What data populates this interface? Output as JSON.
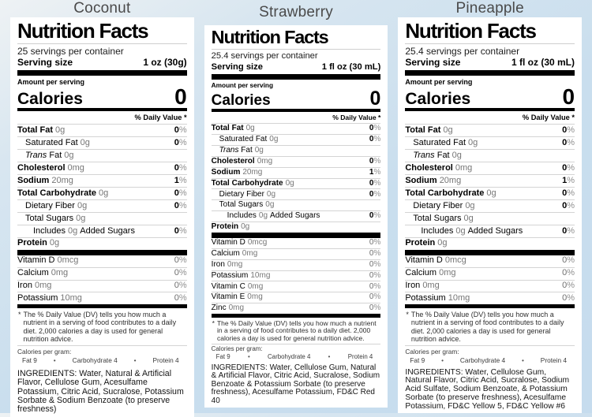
{
  "colors": {
    "page_background": "#c9deee",
    "card_background": "#ffffff",
    "divider_bar": "#000000",
    "muted_text": "#767676",
    "title_text": "#4a4a4a"
  },
  "bullet": "•",
  "cards": [
    {
      "title": "Coconut",
      "heading": "Nutrition Facts",
      "servings_per_container": "25 servings per container",
      "serving_size_label": "Serving size",
      "serving_size_value": "1 oz (30g)",
      "amount_per_serving": "Amount per serving",
      "calories_label": "Calories",
      "calories_value": "0",
      "daily_value_header": "% Daily Value *",
      "nutrient_rows": [
        {
          "name": "Total Fat",
          "qty": "0g",
          "dv": "0%",
          "bold": true,
          "indent": 0
        },
        {
          "name": "Saturated Fat",
          "qty": "0g",
          "dv": "0%",
          "bold": false,
          "indent": 1
        },
        {
          "name_italic": "Trans",
          "name": "Fat",
          "qty": "0g",
          "dv": "",
          "bold": false,
          "indent": 1
        },
        {
          "name": "Cholesterol",
          "qty": "0mg",
          "dv": "0%",
          "bold": true,
          "indent": 0
        },
        {
          "name": "Sodium",
          "qty": "20mg",
          "dv": "1%",
          "bold": true,
          "indent": 0
        },
        {
          "name": "Total Carbohydrate",
          "qty": "0g",
          "dv": "0%",
          "bold": true,
          "indent": 0
        },
        {
          "name": "Dietary Fiber",
          "qty": "0g",
          "dv": "0%",
          "bold": false,
          "indent": 1
        },
        {
          "name": "Total Sugars",
          "qty": "0g",
          "dv": "",
          "bold": false,
          "indent": 1
        },
        {
          "name": "Includes",
          "qty": "0g",
          "name_suffix": "Added Sugars",
          "dv": "0%",
          "bold": false,
          "indent": 2
        },
        {
          "name": "Protein",
          "qty": "0g",
          "dv": "",
          "bold": true,
          "indent": 0
        }
      ],
      "micronutrient_rows": [
        {
          "name": "Vitamin D",
          "qty": "0mcg",
          "dv": "0%"
        },
        {
          "name": "Calcium",
          "qty": "0mg",
          "dv": "0%"
        },
        {
          "name": "Iron",
          "qty": "0mg",
          "dv": "0%"
        },
        {
          "name": "Potassium",
          "qty": "10mg",
          "dv": "0%"
        }
      ],
      "footnote_symbol": "*",
      "footnote": "The % Daily Value (DV) tells you how much a nutrient in a serving of food contributes to a daily diet. 2,000 calories a day is used for general nutrition advice.",
      "calories_per_gram_label": "Calories per gram:",
      "calories_per_gram_items": [
        "Fat 9",
        "Carbohydrate 4",
        "Protein 4"
      ],
      "ingredients": "INGREDIENTS: Water, Natural & Artificial Flavor, Cellulose Gum, Acesulfame Potassium, Citric Acid, Sucralose, Potassium Sorbate & Sodium Benzoate (to preserve freshness)"
    },
    {
      "title": "Strawberry",
      "heading": "Nutrition Facts",
      "servings_per_container": "25.4 servings per container",
      "serving_size_label": "Serving size",
      "serving_size_value": "1 fl oz (30 mL)",
      "amount_per_serving": "Amount per serving",
      "calories_label": "Calories",
      "calories_value": "0",
      "daily_value_header": "% Daily Value *",
      "nutrient_rows": [
        {
          "name": "Total Fat",
          "qty": "0g",
          "dv": "0%",
          "bold": true,
          "indent": 0
        },
        {
          "name": "Saturated Fat",
          "qty": "0g",
          "dv": "0%",
          "bold": false,
          "indent": 1
        },
        {
          "name_italic": "Trans",
          "name": "Fat",
          "qty": "0g",
          "dv": "",
          "bold": false,
          "indent": 1
        },
        {
          "name": "Cholesterol",
          "qty": "0mg",
          "dv": "0%",
          "bold": true,
          "indent": 0
        },
        {
          "name": "Sodium",
          "qty": "20mg",
          "dv": "1%",
          "bold": true,
          "indent": 0
        },
        {
          "name": "Total Carbohydrate",
          "qty": "0g",
          "dv": "0%",
          "bold": true,
          "indent": 0
        },
        {
          "name": "Dietary Fiber",
          "qty": "0g",
          "dv": "0%",
          "bold": false,
          "indent": 1
        },
        {
          "name": "Total Sugars",
          "qty": "0g",
          "dv": "",
          "bold": false,
          "indent": 1
        },
        {
          "name": "Includes",
          "qty": "0g",
          "name_suffix": "Added Sugars",
          "dv": "0%",
          "bold": false,
          "indent": 2
        },
        {
          "name": "Protein",
          "qty": "0g",
          "dv": "",
          "bold": true,
          "indent": 0
        }
      ],
      "micronutrient_rows": [
        {
          "name": "Vitamin D",
          "qty": "0mcg",
          "dv": "0%"
        },
        {
          "name": "Calcium",
          "qty": "0mg",
          "dv": "0%"
        },
        {
          "name": "Iron",
          "qty": "0mg",
          "dv": "0%"
        },
        {
          "name": "Potassium",
          "qty": "10mg",
          "dv": "0%"
        },
        {
          "name": "Vitamin C",
          "qty": "0mg",
          "dv": "0%"
        },
        {
          "name": "Vitamin E",
          "qty": "0mg",
          "dv": "0%"
        },
        {
          "name": "Zinc",
          "qty": "0mg",
          "dv": "0%"
        }
      ],
      "footnote_symbol": "*",
      "footnote": "The % Daily Value (DV) tells you how much a nutrient in a serving of food contributes to a daily diet. 2,000 calories a day is used for general nutrition advice.",
      "calories_per_gram_label": "Calories per gram:",
      "calories_per_gram_items": [
        "Fat 9",
        "Carbohydrate 4",
        "Protein 4"
      ],
      "ingredients": "INGREDIENTS: Water, Cellulose Gum, Natural & Artificial Flavor, Citric Acid, Sucralose, Sodium Benzoate & Potassium Sorbate (to preserve freshness), Acesulfame Potassium, FD&C Red 40"
    },
    {
      "title": "Pineapple",
      "heading": "Nutrition Facts",
      "servings_per_container": "25.4 servings per container",
      "serving_size_label": "Serving size",
      "serving_size_value": "1 fl oz (30 mL)",
      "amount_per_serving": "Amount per serving",
      "calories_label": "Calories",
      "calories_value": "0",
      "daily_value_header": "% Daily Value *",
      "nutrient_rows": [
        {
          "name": "Total Fat",
          "qty": "0g",
          "dv": "0%",
          "bold": true,
          "indent": 0
        },
        {
          "name": "Saturated Fat",
          "qty": "0g",
          "dv": "0%",
          "bold": false,
          "indent": 1
        },
        {
          "name_italic": "Trans",
          "name": "Fat",
          "qty": "0g",
          "dv": "",
          "bold": false,
          "indent": 1
        },
        {
          "name": "Cholesterol",
          "qty": "0mg",
          "dv": "0%",
          "bold": true,
          "indent": 0
        },
        {
          "name": "Sodium",
          "qty": "20mg",
          "dv": "1%",
          "bold": true,
          "indent": 0
        },
        {
          "name": "Total Carbohydrate",
          "qty": "0g",
          "dv": "0%",
          "bold": true,
          "indent": 0
        },
        {
          "name": "Dietary Fiber",
          "qty": "0g",
          "dv": "0%",
          "bold": false,
          "indent": 1
        },
        {
          "name": "Total Sugars",
          "qty": "0g",
          "dv": "",
          "bold": false,
          "indent": 1
        },
        {
          "name": "Includes",
          "qty": "0g",
          "name_suffix": "Added Sugars",
          "dv": "0%",
          "bold": false,
          "indent": 2
        },
        {
          "name": "Protein",
          "qty": "0g",
          "dv": "",
          "bold": true,
          "indent": 0
        }
      ],
      "micronutrient_rows": [
        {
          "name": "Vitamin D",
          "qty": "0mcg",
          "dv": "0%"
        },
        {
          "name": "Calcium",
          "qty": "0mg",
          "dv": "0%"
        },
        {
          "name": "Iron",
          "qty": "0mg",
          "dv": "0%"
        },
        {
          "name": "Potassium",
          "qty": "10mg",
          "dv": "0%"
        }
      ],
      "footnote_symbol": "*",
      "footnote": "The % Daily Value (DV) tells you how much a nutrient in a serving of food contributes to a daily diet. 2,000 calories a day is used for general nutrition advice.",
      "calories_per_gram_label": "Calories per gram:",
      "calories_per_gram_items": [
        "Fat 9",
        "Carbohydrate 4",
        "Protein 4"
      ],
      "ingredients": "INGREDIENTS: Water, Cellulose Gum, Natural Flavor, Citric Acid, Sucralose, Sodium Acid Sulfate, Sodium Benzoate, & Potassium Sorbate (to preserve freshness), Acesulfame Potassium, FD&C Yellow 5, FD&C Yellow #6"
    }
  ]
}
